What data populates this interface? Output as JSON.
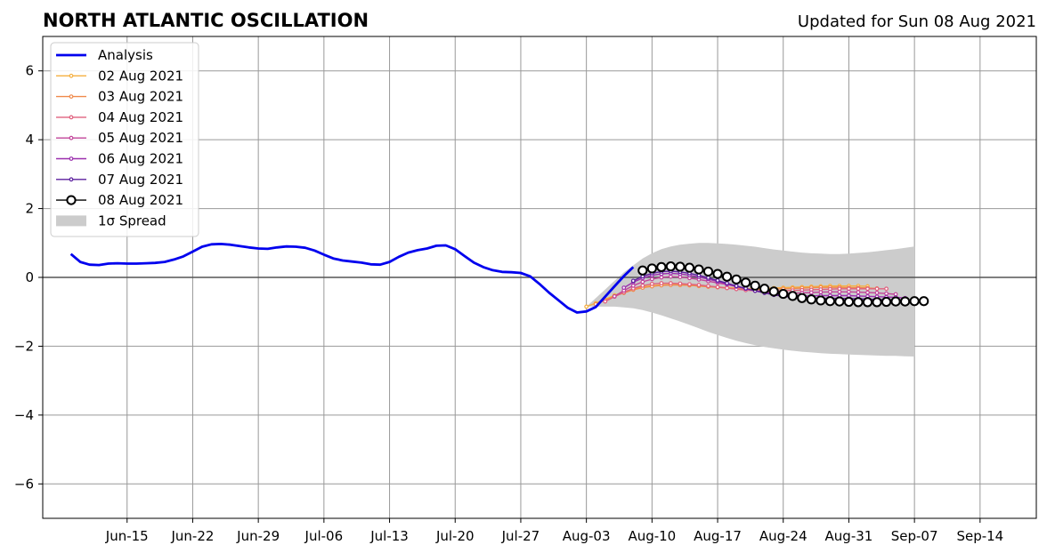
{
  "header": {
    "title": "NORTH ATLANTIC OSCILLATION",
    "updated": "Updated for Sun 08 Aug 2021"
  },
  "colors": {
    "analysis": "#0000ee",
    "forecast_08": "#000000",
    "spread": "#cccccc",
    "grid": "#999999",
    "zero_line": "#555555"
  },
  "chart_data": {
    "type": "line",
    "title": "NORTH ATLANTIC OSCILLATION",
    "subtitle": "Updated for Sun 08 Aug 2021",
    "xlabel": "",
    "ylabel": "",
    "xlim": [
      "2021-06-06",
      "2021-09-20"
    ],
    "ylim": [
      -7,
      7
    ],
    "grid": true,
    "legend_position": "top-left",
    "x_ticks": [
      "Jun-15",
      "Jun-22",
      "Jun-29",
      "Jul-06",
      "Jul-13",
      "Jul-20",
      "Jul-27",
      "Aug-03",
      "Aug-10",
      "Aug-17",
      "Aug-24",
      "Aug-31",
      "Sep-07",
      "Sep-14"
    ],
    "y_ticks": [
      "−6",
      "−4",
      "−2",
      "0",
      "2",
      "4",
      "6"
    ],
    "analysis": {
      "name": "Analysis",
      "color": "#0000ee",
      "start_date": "2021-06-09",
      "values": [
        0.68,
        0.45,
        0.37,
        0.36,
        0.4,
        0.41,
        0.4,
        0.4,
        0.41,
        0.42,
        0.45,
        0.52,
        0.61,
        0.75,
        0.89,
        0.96,
        0.97,
        0.95,
        0.91,
        0.87,
        0.84,
        0.83,
        0.87,
        0.9,
        0.89,
        0.86,
        0.78,
        0.66,
        0.55,
        0.49,
        0.46,
        0.43,
        0.38,
        0.37,
        0.45,
        0.6,
        0.72,
        0.79,
        0.84,
        0.92,
        0.93,
        0.82,
        0.62,
        0.43,
        0.3,
        0.21,
        0.16,
        0.15,
        0.13,
        0.03,
        -0.19,
        -0.44,
        -0.66,
        -0.88,
        -1.02,
        -0.99,
        -0.86,
        -0.56,
        -0.26,
        0.04,
        0.3
      ]
    },
    "forecasts": [
      {
        "name": "02 Aug 2021",
        "color": "#f5b041",
        "start_date": "2021-08-03",
        "values": [
          -0.85,
          -0.75,
          -0.64,
          -0.52,
          -0.42,
          -0.34,
          -0.28,
          -0.24,
          -0.22,
          -0.21,
          -0.22,
          -0.23,
          -0.25,
          -0.27,
          -0.28,
          -0.3,
          -0.31,
          -0.32,
          -0.33,
          -0.32,
          -0.31,
          -0.3,
          -0.29,
          -0.28,
          -0.27,
          -0.26,
          -0.25,
          -0.25,
          -0.25,
          -0.25,
          -0.26
        ]
      },
      {
        "name": "03 Aug 2021",
        "color": "#f08a4b",
        "start_date": "2021-08-04",
        "values": [
          -0.78,
          -0.66,
          -0.55,
          -0.45,
          -0.36,
          -0.3,
          -0.26,
          -0.23,
          -0.22,
          -0.22,
          -0.23,
          -0.25,
          -0.27,
          -0.29,
          -0.31,
          -0.33,
          -0.34,
          -0.35,
          -0.35,
          -0.34,
          -0.33,
          -0.32,
          -0.31,
          -0.3,
          -0.29,
          -0.29,
          -0.29,
          -0.3,
          -0.3,
          -0.31,
          -0.32
        ]
      },
      {
        "name": "04 Aug 2021",
        "color": "#e0607e",
        "start_date": "2021-08-05",
        "values": [
          -0.7,
          -0.56,
          -0.43,
          -0.32,
          -0.24,
          -0.19,
          -0.17,
          -0.17,
          -0.18,
          -0.2,
          -0.22,
          -0.25,
          -0.28,
          -0.31,
          -0.34,
          -0.37,
          -0.39,
          -0.4,
          -0.4,
          -0.39,
          -0.38,
          -0.37,
          -0.36,
          -0.35,
          -0.34,
          -0.33,
          -0.33,
          -0.33,
          -0.33,
          -0.33,
          -0.33
        ]
      },
      {
        "name": "05 Aug 2021",
        "color": "#c2449a",
        "start_date": "2021-08-06",
        "values": [
          -0.55,
          -0.38,
          -0.24,
          -0.13,
          -0.05,
          0.0,
          0.02,
          0.01,
          -0.02,
          -0.06,
          -0.11,
          -0.16,
          -0.21,
          -0.27,
          -0.33,
          -0.38,
          -0.42,
          -0.45,
          -0.46,
          -0.46,
          -0.45,
          -0.44,
          -0.43,
          -0.42,
          -0.42,
          -0.42,
          -0.43,
          -0.44,
          -0.45,
          -0.47,
          -0.49
        ]
      },
      {
        "name": "06 Aug 2021",
        "color": "#9b2fae",
        "start_date": "2021-08-07",
        "values": [
          -0.3,
          -0.14,
          -0.02,
          0.06,
          0.1,
          0.12,
          0.1,
          0.06,
          0.01,
          -0.05,
          -0.12,
          -0.19,
          -0.26,
          -0.33,
          -0.39,
          -0.45,
          -0.49,
          -0.52,
          -0.54,
          -0.54,
          -0.54,
          -0.53,
          -0.53,
          -0.53,
          -0.53,
          -0.54,
          -0.55,
          -0.56,
          -0.57,
          -0.58,
          -0.6
        ]
      },
      {
        "name": "07 Aug 2021",
        "color": "#5b1f9e",
        "start_date": "2021-08-08",
        "values": [
          -0.1,
          0.03,
          0.12,
          0.17,
          0.18,
          0.16,
          0.12,
          0.06,
          -0.01,
          -0.09,
          -0.17,
          -0.25,
          -0.32,
          -0.39,
          -0.45,
          -0.51,
          -0.55,
          -0.58,
          -0.6,
          -0.61,
          -0.61,
          -0.61,
          -0.61,
          -0.62,
          -0.62,
          -0.63,
          -0.64,
          -0.65,
          -0.66,
          -0.67,
          -0.68
        ]
      },
      {
        "name": "08 Aug 2021",
        "color": "#000000",
        "start_date": "2021-08-09",
        "values": [
          0.2,
          0.26,
          0.3,
          0.32,
          0.31,
          0.28,
          0.23,
          0.17,
          0.1,
          0.02,
          -0.06,
          -0.15,
          -0.24,
          -0.33,
          -0.41,
          -0.48,
          -0.54,
          -0.6,
          -0.64,
          -0.67,
          -0.69,
          -0.7,
          -0.71,
          -0.72,
          -0.72,
          -0.72,
          -0.71,
          -0.7,
          -0.7,
          -0.69,
          -0.69
        ]
      }
    ],
    "spread": {
      "name": "1σ Spread",
      "color": "#cccccc",
      "start_date": "2021-08-03",
      "upper": [
        -0.85,
        -0.6,
        -0.35,
        -0.1,
        0.15,
        0.35,
        0.55,
        0.7,
        0.82,
        0.9,
        0.95,
        0.98,
        1.0,
        1.0,
        0.99,
        0.97,
        0.95,
        0.92,
        0.89,
        0.85,
        0.81,
        0.78,
        0.75,
        0.72,
        0.7,
        0.69,
        0.68,
        0.68,
        0.69,
        0.71,
        0.73,
        0.76,
        0.79,
        0.82,
        0.86,
        0.9
      ],
      "lower": [
        -0.85,
        -0.85,
        -0.85,
        -0.85,
        -0.87,
        -0.9,
        -0.95,
        -1.02,
        -1.1,
        -1.19,
        -1.28,
        -1.38,
        -1.48,
        -1.58,
        -1.67,
        -1.76,
        -1.84,
        -1.91,
        -1.97,
        -2.02,
        -2.06,
        -2.1,
        -2.13,
        -2.16,
        -2.18,
        -2.2,
        -2.22,
        -2.23,
        -2.24,
        -2.25,
        -2.26,
        -2.27,
        -2.28,
        -2.28,
        -2.29,
        -2.3
      ]
    }
  }
}
